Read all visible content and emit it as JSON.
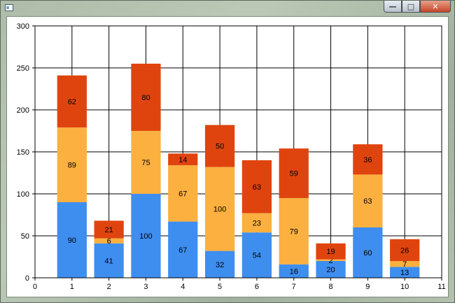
{
  "window": {
    "title": "",
    "buttons": {
      "minimize": "—",
      "maximize": "□",
      "close": "✕"
    },
    "icons": {
      "app": "window-icon"
    }
  },
  "chart_data": {
    "type": "bar",
    "stacked": true,
    "x": [
      1,
      2,
      3,
      4,
      5,
      6,
      7,
      8,
      9,
      10
    ],
    "series": [
      {
        "color": "#3e8ef0",
        "values": [
          90,
          41,
          100,
          67,
          32,
          54,
          16,
          20,
          60,
          13
        ]
      },
      {
        "color": "#fbb040",
        "values": [
          89,
          6,
          75,
          67,
          100,
          23,
          79,
          2,
          63,
          7
        ]
      },
      {
        "color": "#e0440e",
        "values": [
          62,
          21,
          80,
          14,
          50,
          63,
          59,
          19,
          36,
          26
        ]
      }
    ],
    "xlim": [
      0,
      11
    ],
    "ylim": [
      0,
      300
    ],
    "xticks": [
      0,
      1,
      2,
      3,
      4,
      5,
      6,
      7,
      8,
      9,
      10,
      11
    ],
    "yticks": [
      0,
      50,
      100,
      150,
      200,
      250,
      300
    ],
    "grid": true,
    "data_labels": true,
    "title": "",
    "xlabel": "",
    "ylabel": ""
  }
}
